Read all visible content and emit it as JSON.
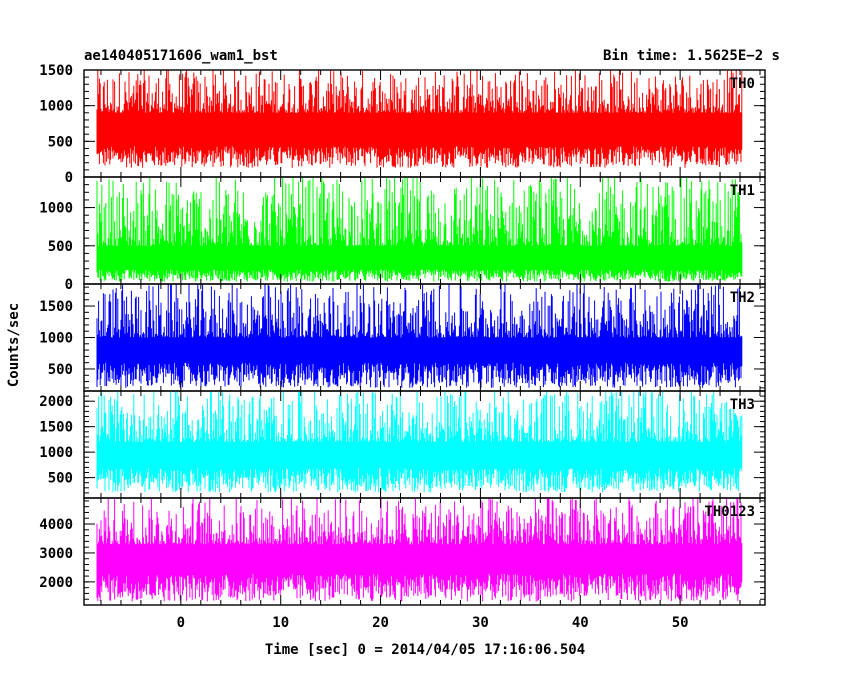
{
  "header": {
    "title": "ae140405171606_wam1_bst",
    "bin_time": "Bin time: 1.5625E−2 s"
  },
  "chart_data": {
    "type": "line",
    "xlabel": "Time [sec] 0 = 2014/04/05 17:16:06.504",
    "ylabel": "Counts/sec",
    "x_range": [
      -8.4,
      56.2
    ],
    "xlim": [
      -9.7,
      58.5
    ],
    "x_ticks": [
      0,
      10,
      20,
      30,
      40,
      50
    ],
    "x_tick_labels": [
      "0",
      "10",
      "20",
      "30",
      "40",
      "50"
    ],
    "panels": [
      {
        "name": "TH0",
        "color": "#ff0000",
        "ylim": [
          0,
          1500
        ],
        "y_ticks": [
          0,
          500,
          1000,
          1500
        ],
        "y_tick_labels": [
          "0",
          "500",
          "1000",
          "1500"
        ],
        "level_low": 280,
        "level_high": 900,
        "envelope_min": 90,
        "envelope_max": 1500
      },
      {
        "name": "TH1",
        "color": "#00ff00",
        "ylim": [
          0,
          1400
        ],
        "y_ticks": [
          0,
          500,
          1000
        ],
        "y_tick_labels": [
          "0",
          "500",
          "1000"
        ],
        "level_low": 110,
        "level_high": 500,
        "envelope_min": 10,
        "envelope_max": 1400
      },
      {
        "name": "TH2",
        "color": "#0000ff",
        "ylim": [
          150,
          1850
        ],
        "y_ticks": [
          500,
          1000,
          1500
        ],
        "y_tick_labels": [
          "500",
          "1000",
          "1500"
        ],
        "level_low": 400,
        "level_high": 1000,
        "envelope_min": 150,
        "envelope_max": 1850
      },
      {
        "name": "TH3",
        "color": "#00ffff",
        "ylim": [
          100,
          2200
        ],
        "y_ticks": [
          500,
          1000,
          1500,
          2000
        ],
        "y_tick_labels": [
          "500",
          "1000",
          "1500",
          "2000"
        ],
        "level_low": 450,
        "level_high": 1200,
        "envelope_min": 150,
        "envelope_max": 2200
      },
      {
        "name": "TH0123",
        "color": "#ff00ff",
        "ylim": [
          1200,
          4900
        ],
        "y_ticks": [
          2000,
          3000,
          4000
        ],
        "y_tick_labels": [
          "2000",
          "3000",
          "4000"
        ],
        "level_low": 1800,
        "level_high": 3300,
        "envelope_min": 1200,
        "envelope_max": 4900
      }
    ]
  }
}
